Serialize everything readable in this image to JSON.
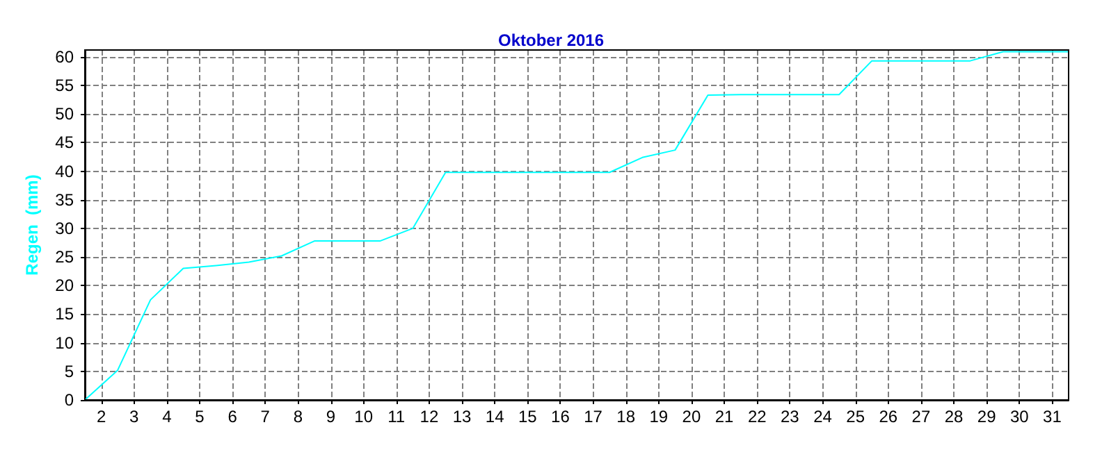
{
  "chart_data": {
    "type": "line",
    "title": "Oktober 2016",
    "ylabel": "Regen  (mm)",
    "x": [
      1.5,
      2.5,
      3.5,
      4.5,
      5.5,
      6.5,
      7.5,
      8.5,
      9.5,
      10.5,
      11.5,
      12.5,
      13.5,
      14.5,
      15.5,
      16.5,
      17.5,
      18.5,
      19.5,
      20.5,
      21.5,
      22.5,
      23.5,
      24.5,
      25.5,
      26.5,
      27.5,
      28.5,
      29.5,
      30.5,
      31.5
    ],
    "series": [
      {
        "color": "#00ffff",
        "values": [
          0,
          5.2,
          17.5,
          23,
          23.5,
          24.1,
          25.2,
          27.8,
          27.8,
          27.8,
          30,
          39.8,
          39.8,
          39.8,
          39.8,
          39.8,
          39.8,
          42.4,
          43.7,
          53.3,
          53.4,
          53.4,
          53.4,
          53.4,
          59.3,
          59.3,
          59.3,
          59.3,
          60.9,
          60.9,
          60.9
        ]
      }
    ],
    "xlim": [
      1.5,
      31.5
    ],
    "xticks": [
      2,
      3,
      4,
      5,
      6,
      7,
      8,
      9,
      10,
      11,
      12,
      13,
      14,
      15,
      16,
      17,
      18,
      19,
      20,
      21,
      22,
      23,
      24,
      25,
      26,
      27,
      28,
      29,
      30,
      31
    ],
    "ylim": [
      0,
      61.2
    ],
    "yticks": [
      0,
      5,
      10,
      15,
      20,
      25,
      30,
      35,
      40,
      45,
      50,
      55,
      60
    ],
    "grid": true,
    "marker": "none",
    "line_style": "solid"
  }
}
